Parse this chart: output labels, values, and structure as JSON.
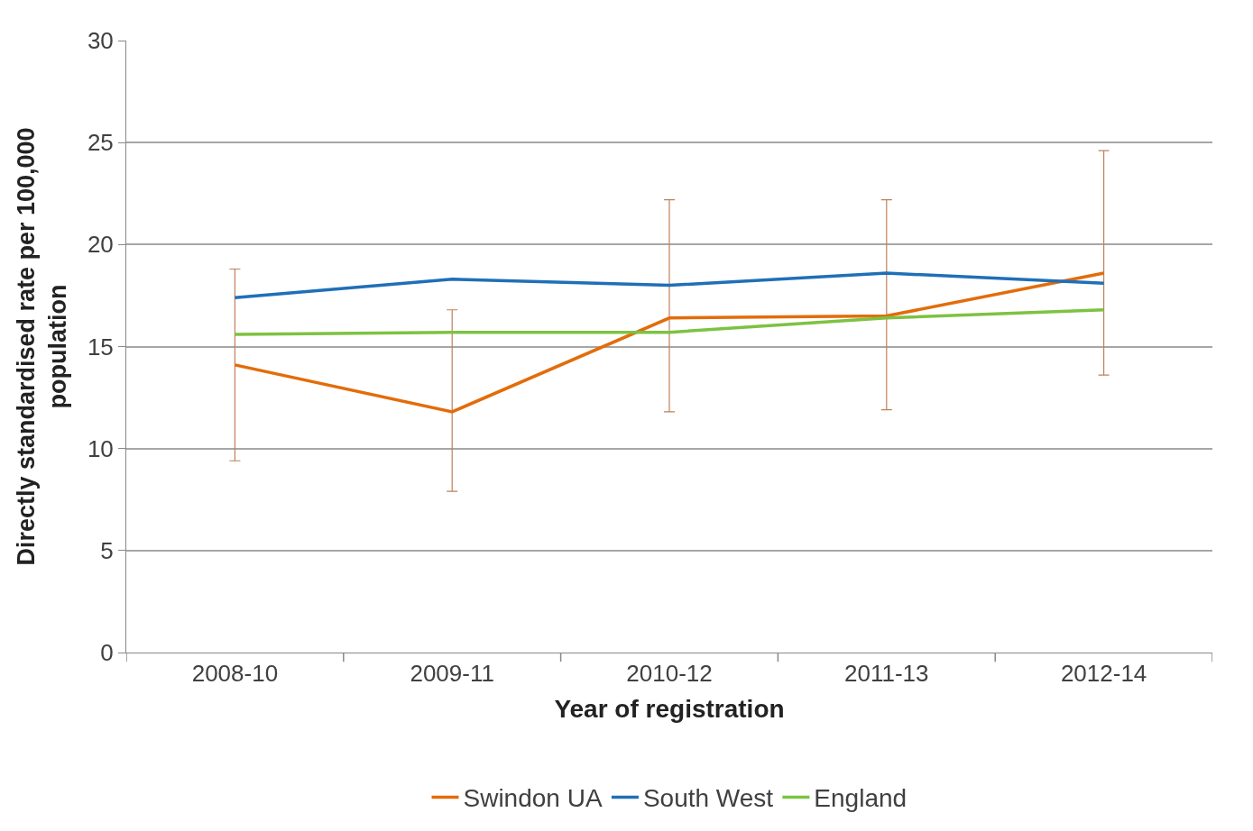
{
  "chart_data": {
    "type": "line",
    "xlabel": "Year of registration",
    "ylabel": "Directly standardised rate per 100,000 population",
    "categories": [
      "2008-10",
      "2009-11",
      "2010-12",
      "2011-13",
      "2012-14"
    ],
    "series": [
      {
        "name": "Swindon UA",
        "color": "#e36c0a",
        "values": [
          14.1,
          11.8,
          16.4,
          16.5,
          18.6
        ],
        "errors": [
          [
            9.4,
            18.8
          ],
          [
            7.9,
            16.8
          ],
          [
            11.8,
            22.2
          ],
          [
            11.9,
            22.2
          ],
          [
            13.6,
            24.6
          ]
        ]
      },
      {
        "name": "South West",
        "color": "#1f6fb8",
        "values": [
          17.4,
          18.3,
          18.0,
          18.6,
          18.1
        ]
      },
      {
        "name": "England",
        "color": "#7dc242",
        "values": [
          15.6,
          15.7,
          15.7,
          16.4,
          16.8
        ]
      }
    ],
    "ylim": [
      0,
      30
    ],
    "yticks": [
      0,
      5,
      10,
      15,
      20,
      25,
      30
    ],
    "grid": "y",
    "legend": "bottom",
    "marker": "none",
    "line_style": "solid"
  }
}
